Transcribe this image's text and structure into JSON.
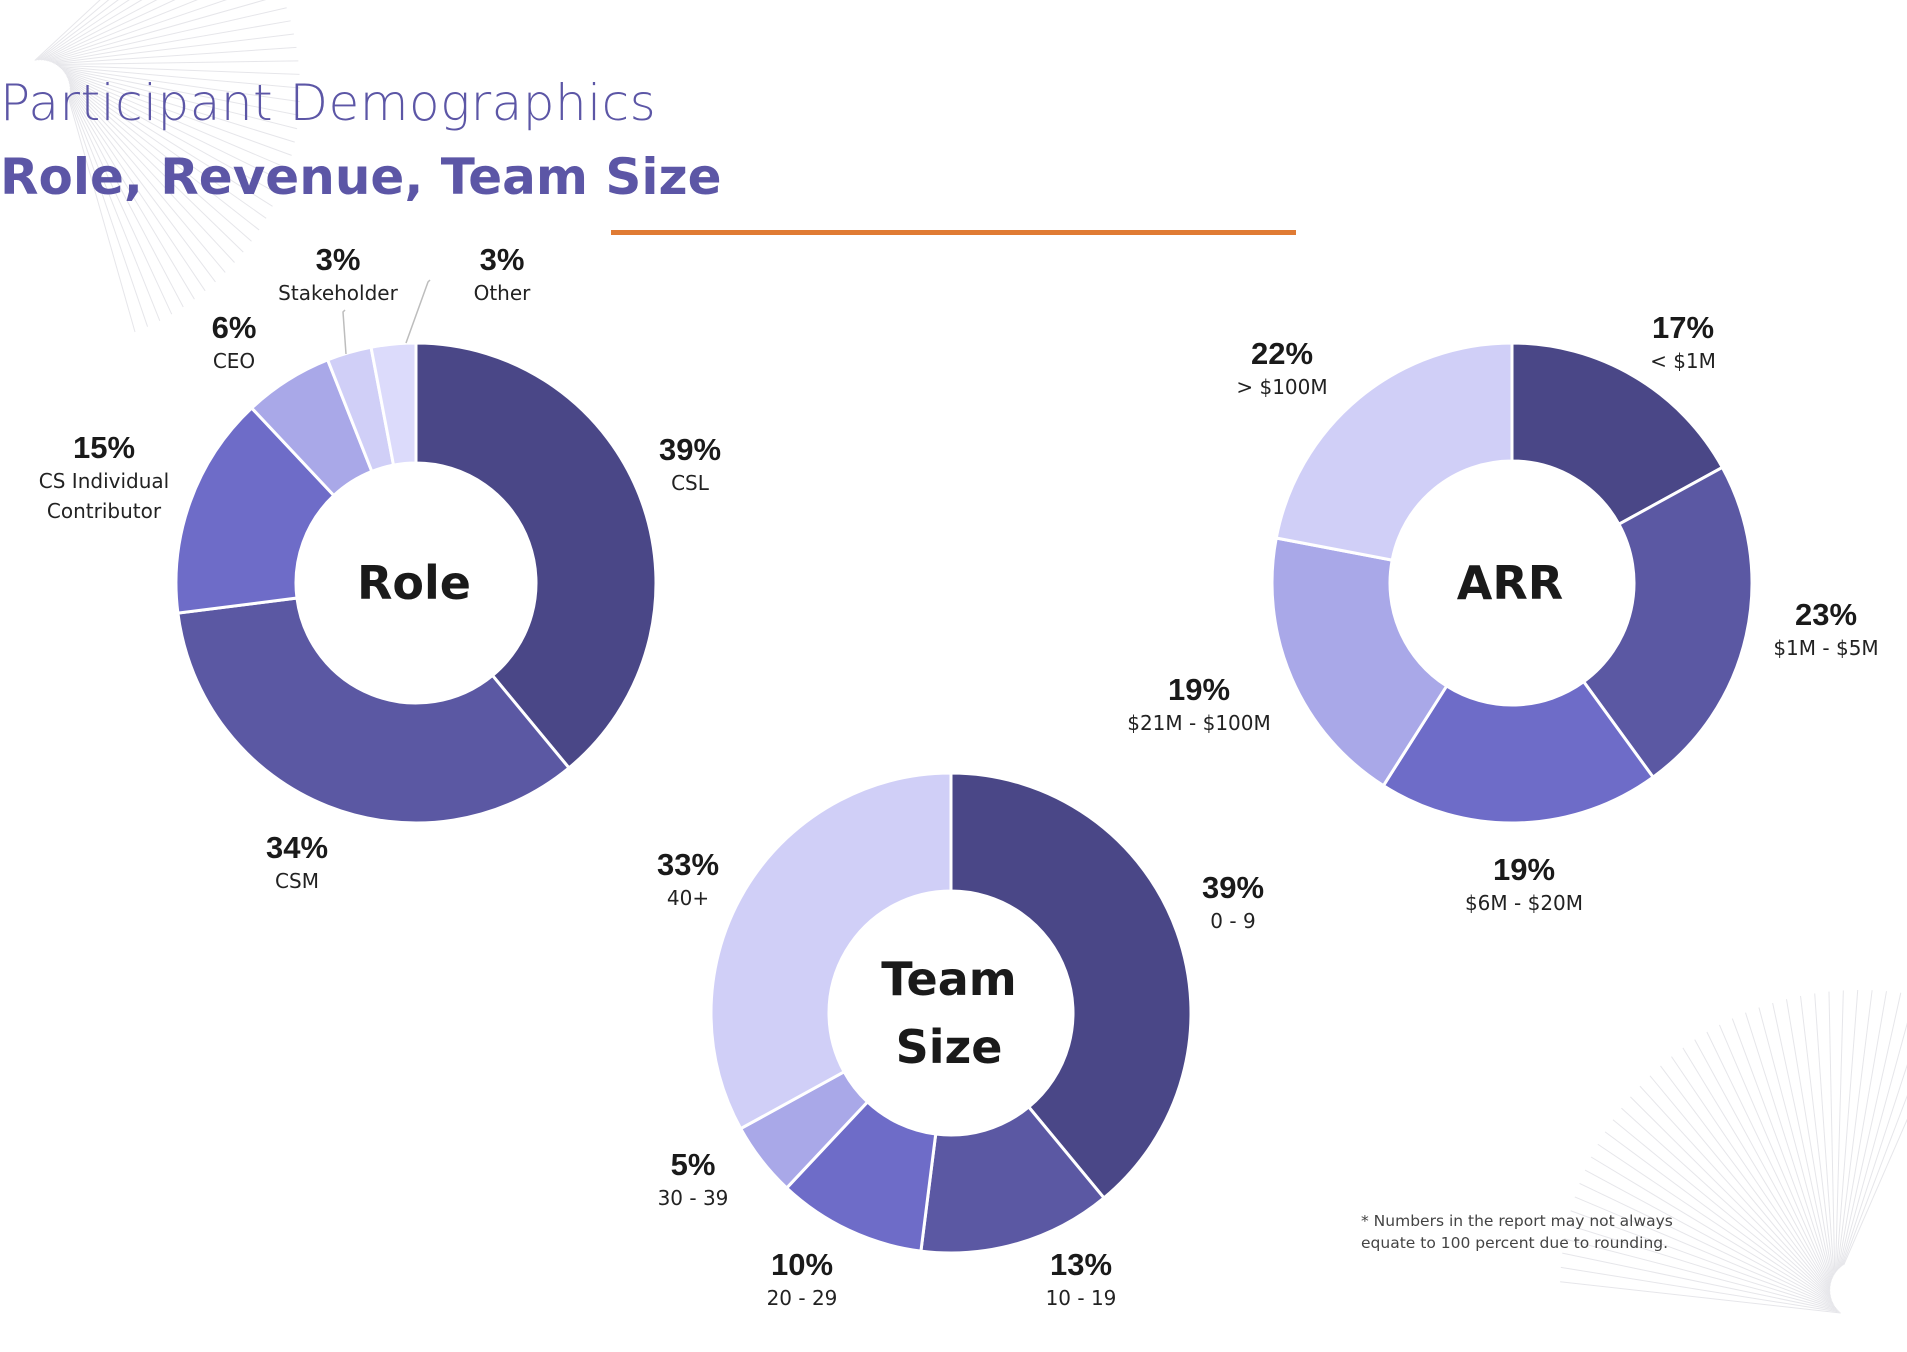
{
  "header": {
    "title": "Participant Demographics",
    "subtitle": "Role, Revenue, Team Size"
  },
  "footnote": "* Numbers in the report may not always equate to 100 percent due to rounding.",
  "colors": {
    "title": "#5c56a6",
    "accent_rule": "#e07b34",
    "palette": [
      "#4a4787",
      "#5b58a3",
      "#6e6cc8",
      "#a9a8e8",
      "#d0cff7",
      "#dcdbfb"
    ]
  },
  "chart_data": [
    {
      "type": "pie",
      "donut": true,
      "center_label": "Role",
      "slices": [
        {
          "label": "CSL",
          "value": 39,
          "display": "39%"
        },
        {
          "label": "CSM",
          "value": 34,
          "display": "34%"
        },
        {
          "label": "CS Individual Contributor",
          "value": 15,
          "display": "15%"
        },
        {
          "label": "CEO",
          "value": 6,
          "display": "6%"
        },
        {
          "label": "Stakeholder",
          "value": 3,
          "display": "3%"
        },
        {
          "label": "Other",
          "value": 3,
          "display": "3%"
        }
      ]
    },
    {
      "type": "pie",
      "donut": true,
      "center_label": "ARR",
      "slices": [
        {
          "label": "< $1M",
          "value": 17,
          "display": "17%"
        },
        {
          "label": "$1M - $5M",
          "value": 23,
          "display": "23%"
        },
        {
          "label": "$6M - $20M",
          "value": 19,
          "display": "19%"
        },
        {
          "label": "$21M - $100M",
          "value": 19,
          "display": "19%"
        },
        {
          "label": "> $100M",
          "value": 22,
          "display": "22%"
        }
      ]
    },
    {
      "type": "pie",
      "donut": true,
      "center_label": "Team Size",
      "slices": [
        {
          "label": "0 - 9",
          "value": 39,
          "display": "39%"
        },
        {
          "label": "10 - 19",
          "value": 13,
          "display": "13%"
        },
        {
          "label": "20 - 29",
          "value": 10,
          "display": "10%"
        },
        {
          "label": "30 - 39",
          "value": 5,
          "display": "5%"
        },
        {
          "label": "40+",
          "value": 33,
          "display": "33%"
        }
      ]
    }
  ]
}
